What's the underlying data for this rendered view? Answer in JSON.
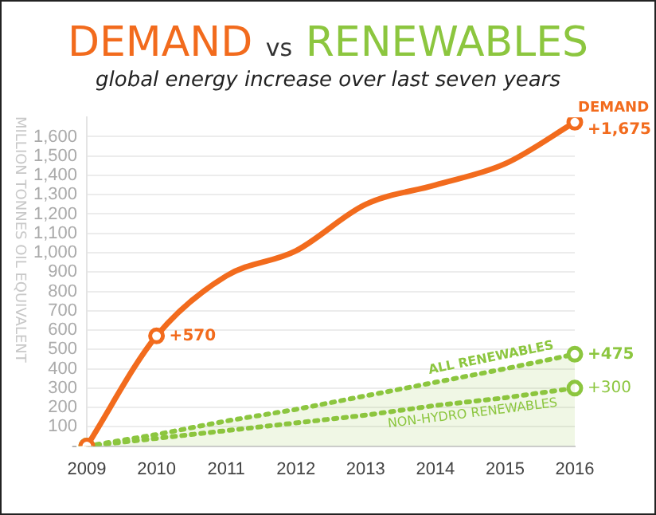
{
  "chart_data": {
    "type": "line",
    "title": "DEMAND vs RENEWABLES",
    "subtitle": "global energy increase over last seven years",
    "ylabel": "MILLION TONNES OIL EQUIVALENT",
    "categories": [
      "2009",
      "2010",
      "2011",
      "2012",
      "2013",
      "2014",
      "2015",
      "2016"
    ],
    "series": [
      {
        "name": "DEMAND",
        "color": "#f26b1d",
        "line_style": "solid",
        "values": [
          0,
          570,
          880,
          1010,
          1250,
          1350,
          1460,
          1675
        ],
        "value_labels": [
          null,
          "+570",
          null,
          null,
          null,
          null,
          null,
          "+1,675"
        ]
      },
      {
        "name": "ALL RENEWABLES",
        "color": "#8cc63f",
        "line_style": "dotted",
        "type": "area",
        "values": [
          0,
          60,
          130,
          190,
          260,
          330,
          400,
          475
        ],
        "value_labels": [
          null,
          null,
          null,
          null,
          null,
          null,
          null,
          "+475"
        ]
      },
      {
        "name": "NON-HYDRO RENEWABLES",
        "color": "#8cc63f",
        "line_style": "dotted",
        "values": [
          0,
          40,
          80,
          120,
          160,
          210,
          250,
          300
        ],
        "value_labels": [
          null,
          null,
          null,
          null,
          null,
          null,
          null,
          "+300"
        ]
      }
    ],
    "ylim": [
      0,
      1700
    ],
    "yticks": [
      {
        "value": 0,
        "label": "-"
      },
      {
        "value": 100,
        "label": "100"
      },
      {
        "value": 200,
        "label": "200"
      },
      {
        "value": 300,
        "label": "300"
      },
      {
        "value": 400,
        "label": "400"
      },
      {
        "value": 500,
        "label": "500"
      },
      {
        "value": 600,
        "label": "600"
      },
      {
        "value": 700,
        "label": "700"
      },
      {
        "value": 800,
        "label": "800"
      },
      {
        "value": 900,
        "label": "900"
      },
      {
        "value": 1000,
        "label": "1,000"
      },
      {
        "value": 1100,
        "label": "1,100"
      },
      {
        "value": 1200,
        "label": "1,200"
      },
      {
        "value": 1300,
        "label": "1,300"
      },
      {
        "value": 1400,
        "label": "1,400"
      },
      {
        "value": 1500,
        "label": "1,500"
      },
      {
        "value": 1600,
        "label": "1,600"
      }
    ],
    "grid": "y",
    "legend": false
  }
}
